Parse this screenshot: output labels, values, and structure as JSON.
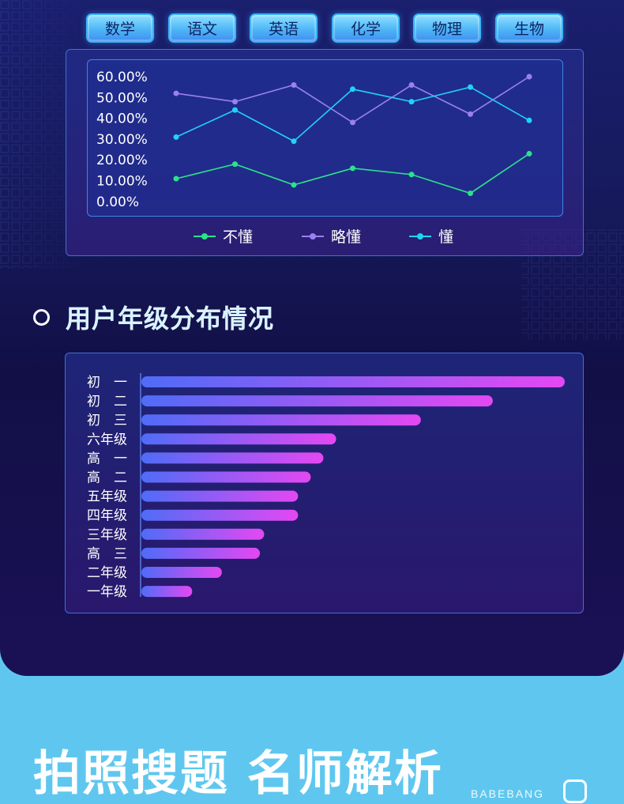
{
  "subject_tabs": [
    "数学",
    "语文",
    "英语",
    "化学",
    "物理",
    "生物"
  ],
  "section_title": "用户年级分布情况",
  "banner_text": "拍照搜题 名师解析",
  "brand_text": "BABEBANG",
  "colors": {
    "series_buding": "#2be38a",
    "series_luedong": "#9b80f0",
    "series_dong": "#21d2f2",
    "bar_start": "#4f6cf7",
    "bar_end": "#e448f2",
    "tab_fill": "#57c1f8",
    "background_top": "#1a1f6e",
    "background_bottom": "#5fc7ef"
  },
  "icons": [
    "ring-bullet-icon",
    "brand-logo-icon"
  ],
  "chart_data": [
    {
      "type": "line",
      "x": [
        "1",
        "2",
        "3",
        "4",
        "5",
        "6",
        "7"
      ],
      "ylim": [
        0,
        60
      ],
      "y_ticks": [
        "60.00%",
        "50.00%",
        "40.00%",
        "30.00%",
        "20.00%",
        "10.00%",
        "0.00%"
      ],
      "xlabel": "",
      "ylabel": "",
      "title": "",
      "legend_position": "bottom",
      "grid": false,
      "series": [
        {
          "name": "不懂",
          "values": [
            11,
            18,
            8,
            16,
            13,
            4,
            23
          ]
        },
        {
          "name": "略懂",
          "values": [
            52,
            48,
            56,
            38,
            56,
            42,
            60
          ]
        },
        {
          "name": "懂",
          "values": [
            31,
            44,
            29,
            54,
            48,
            55,
            39
          ]
        }
      ]
    },
    {
      "type": "bar",
      "orientation": "horizontal",
      "categories": [
        "初　一",
        "初　二",
        "初　三",
        "六年级",
        "高　一",
        "高　二",
        "五年级",
        "四年级",
        "三年级",
        "高　三",
        "二年级",
        "一年级"
      ],
      "values": [
        100,
        83,
        66,
        46,
        43,
        40,
        37,
        37,
        29,
        28,
        19,
        12
      ],
      "xlim": [
        0,
        100
      ],
      "title": "",
      "xlabel": "",
      "ylabel": "",
      "grid": false
    }
  ]
}
